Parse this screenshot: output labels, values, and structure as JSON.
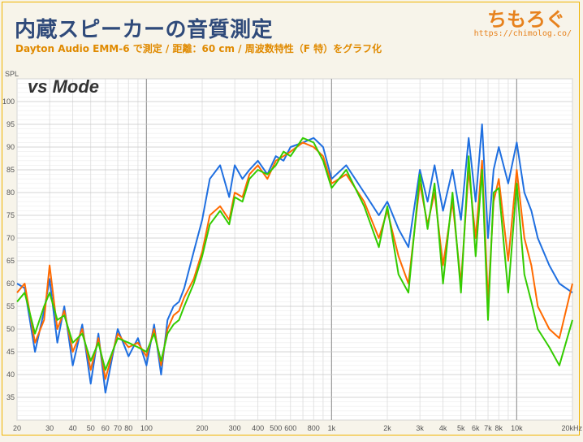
{
  "header": {
    "title": "内蔵スピーカーの音質測定",
    "subtitle": "Dayton Audio EMM-6 で測定 / 距離：60 cm / 周波数特性（F 特）をグラフ化",
    "logo": "ちもろぐ",
    "url": "https://chimolog.co/"
  },
  "colors": {
    "blue": "#1f6fe0",
    "orange": "#ff6a00",
    "green": "#33cc00"
  },
  "chart_data": {
    "type": "line",
    "title": "vs Mode",
    "ylabel": "SPL",
    "xscale": "log",
    "xlim": [
      20,
      20000
    ],
    "ylim": [
      30,
      105
    ],
    "x_tick_labels": [
      {
        "v": 20,
        "t": "20"
      },
      {
        "v": 30,
        "t": "30"
      },
      {
        "v": 40,
        "t": "40"
      },
      {
        "v": 50,
        "t": "50"
      },
      {
        "v": 60,
        "t": "60"
      },
      {
        "v": 70,
        "t": "70"
      },
      {
        "v": 80,
        "t": "80"
      },
      {
        "v": 100,
        "t": "100"
      },
      {
        "v": 200,
        "t": "200"
      },
      {
        "v": 300,
        "t": "300"
      },
      {
        "v": 400,
        "t": "400"
      },
      {
        "v": 500,
        "t": "500"
      },
      {
        "v": 600,
        "t": "600"
      },
      {
        "v": 800,
        "t": "800"
      },
      {
        "v": 1000,
        "t": "1k"
      },
      {
        "v": 2000,
        "t": "2k"
      },
      {
        "v": 3000,
        "t": "3k"
      },
      {
        "v": 4000,
        "t": "4k"
      },
      {
        "v": 5000,
        "t": "5k"
      },
      {
        "v": 6000,
        "t": "6k"
      },
      {
        "v": 7000,
        "t": "7k"
      },
      {
        "v": 8000,
        "t": "8k"
      },
      {
        "v": 10000,
        "t": "10k"
      },
      {
        "v": 20000,
        "t": "20kHz"
      }
    ],
    "y_ticks": [
      35,
      40,
      45,
      50,
      55,
      60,
      65,
      70,
      75,
      80,
      85,
      90,
      95,
      100
    ],
    "series": [
      {
        "color": "#1f6fe0",
        "x": [
          20,
          22,
          25,
          28,
          30,
          33,
          36,
          40,
          45,
          50,
          55,
          60,
          70,
          80,
          90,
          100,
          110,
          120,
          130,
          140,
          150,
          160,
          180,
          200,
          220,
          250,
          280,
          300,
          330,
          360,
          400,
          450,
          500,
          550,
          600,
          700,
          800,
          900,
          1000,
          1200,
          1500,
          1800,
          2000,
          2300,
          2600,
          3000,
          3300,
          3600,
          4000,
          4500,
          5000,
          5500,
          6000,
          6500,
          7000,
          7500,
          8000,
          9000,
          10000,
          11000,
          12000,
          13000,
          15000,
          17000,
          20000
        ],
        "y": [
          60,
          59,
          45,
          54,
          61,
          47,
          55,
          42,
          51,
          38,
          49,
          36,
          50,
          44,
          48,
          42,
          51,
          40,
          52,
          55,
          56,
          59,
          67,
          74,
          83,
          86,
          79,
          86,
          83,
          85,
          87,
          84,
          88,
          87,
          90,
          91,
          92,
          90,
          83,
          86,
          80,
          75,
          78,
          72,
          68,
          85,
          78,
          86,
          76,
          85,
          74,
          92,
          78,
          95,
          70,
          85,
          90,
          82,
          91,
          80,
          76,
          70,
          64,
          60,
          58
        ]
      },
      {
        "color": "#ff6a00",
        "x": [
          20,
          22,
          25,
          28,
          30,
          33,
          36,
          40,
          45,
          50,
          55,
          60,
          70,
          80,
          90,
          100,
          110,
          120,
          130,
          140,
          150,
          160,
          180,
          200,
          220,
          250,
          280,
          300,
          330,
          360,
          400,
          450,
          500,
          550,
          600,
          700,
          800,
          900,
          1000,
          1200,
          1500,
          1800,
          2000,
          2300,
          2600,
          3000,
          3300,
          3600,
          4000,
          4500,
          5000,
          5500,
          6000,
          6500,
          7000,
          7500,
          8000,
          9000,
          10000,
          11000,
          12000,
          13000,
          15000,
          17000,
          20000
        ],
        "y": [
          58,
          60,
          47,
          52,
          64,
          50,
          54,
          45,
          50,
          41,
          48,
          39,
          49,
          46,
          47,
          44,
          50,
          42,
          50,
          53,
          54,
          57,
          61,
          67,
          75,
          77,
          74,
          80,
          79,
          84,
          86,
          83,
          87,
          88,
          89,
          91,
          90,
          88,
          82,
          84,
          78,
          70,
          76,
          66,
          60,
          82,
          73,
          80,
          64,
          78,
          60,
          85,
          70,
          87,
          56,
          78,
          83,
          65,
          85,
          70,
          64,
          55,
          50,
          48,
          60
        ]
      },
      {
        "color": "#33cc00",
        "x": [
          20,
          22,
          25,
          28,
          30,
          33,
          36,
          40,
          45,
          50,
          55,
          60,
          70,
          80,
          90,
          100,
          110,
          120,
          130,
          140,
          150,
          160,
          180,
          200,
          220,
          250,
          280,
          300,
          330,
          360,
          400,
          450,
          500,
          550,
          600,
          700,
          800,
          900,
          1000,
          1200,
          1500,
          1800,
          2000,
          2300,
          2600,
          3000,
          3300,
          3600,
          4000,
          4500,
          5000,
          5500,
          6000,
          6500,
          7000,
          7500,
          8000,
          9000,
          10000,
          11000,
          12000,
          13000,
          15000,
          17000,
          20000
        ],
        "y": [
          56,
          58,
          49,
          55,
          58,
          52,
          53,
          47,
          49,
          43,
          47,
          41,
          48,
          47,
          46,
          45,
          49,
          43,
          49,
          51,
          52,
          55,
          60,
          66,
          73,
          76,
          73,
          79,
          78,
          83,
          85,
          84,
          86,
          89,
          88,
          92,
          91,
          87,
          81,
          85,
          77,
          68,
          77,
          62,
          58,
          84,
          72,
          82,
          60,
          80,
          58,
          88,
          66,
          85,
          52,
          80,
          81,
          58,
          82,
          62,
          56,
          50,
          46,
          42,
          52
        ]
      }
    ]
  }
}
